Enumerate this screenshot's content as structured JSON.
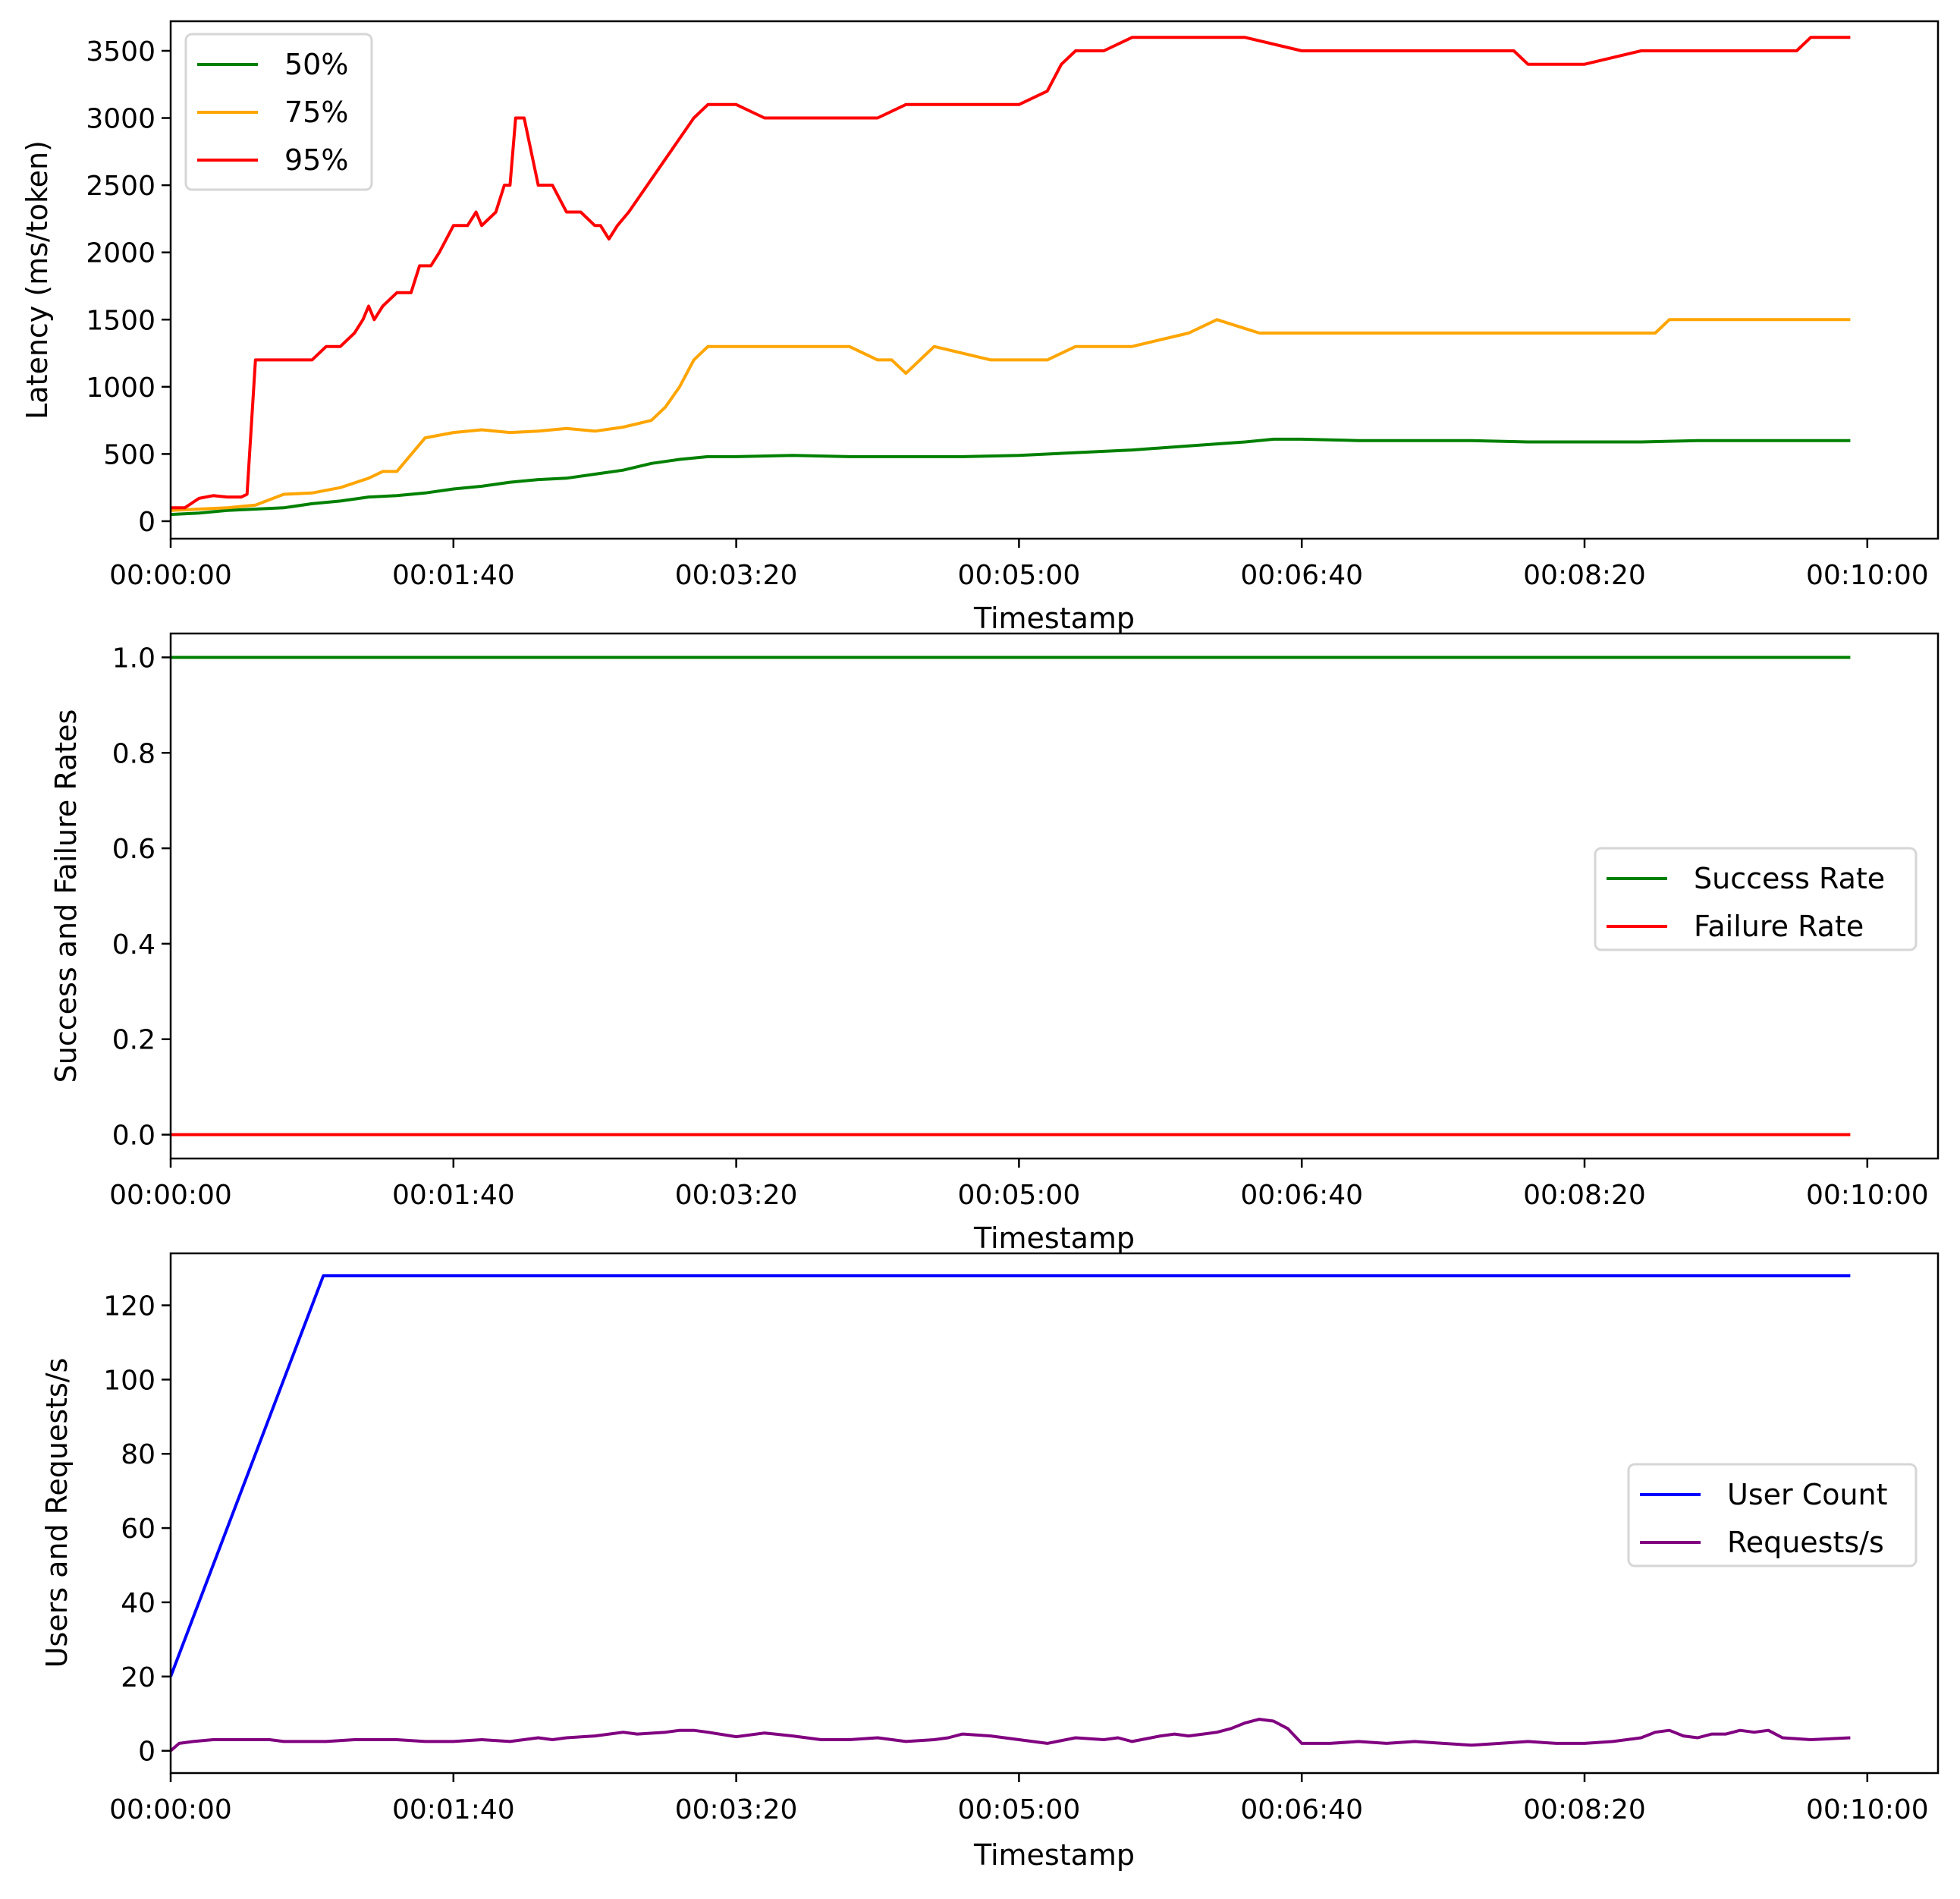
{
  "chart_data": [
    {
      "type": "line",
      "title": "",
      "xlabel": "Timestamp",
      "ylabel": "Latency (ms/token)",
      "xlim_seconds": [
        0,
        625
      ],
      "ylim": [
        -130,
        3720
      ],
      "x_ticks": [
        "00:00:00",
        "00:01:40",
        "00:03:20",
        "00:05:00",
        "00:06:40",
        "00:08:20",
        "00:10:00"
      ],
      "x_tick_seconds": [
        0,
        100,
        200,
        300,
        400,
        500,
        600
      ],
      "y_ticks": [
        0,
        500,
        1000,
        1500,
        2000,
        2500,
        3000,
        3500
      ],
      "legend_position": "upper left",
      "grid": false,
      "series": [
        {
          "name": "50%",
          "color": "#008000",
          "x": [
            0,
            10,
            20,
            30,
            40,
            50,
            60,
            70,
            80,
            90,
            100,
            110,
            120,
            130,
            140,
            150,
            160,
            170,
            180,
            190,
            200,
            220,
            240,
            260,
            280,
            300,
            320,
            340,
            360,
            380,
            390,
            400,
            420,
            440,
            460,
            480,
            500,
            520,
            540,
            560,
            580,
            594
          ],
          "y": [
            50,
            60,
            80,
            90,
            100,
            130,
            150,
            180,
            190,
            210,
            240,
            260,
            290,
            310,
            320,
            350,
            380,
            430,
            460,
            480,
            480,
            490,
            480,
            480,
            480,
            490,
            510,
            530,
            560,
            590,
            610,
            610,
            600,
            600,
            600,
            590,
            590,
            590,
            600,
            600,
            600,
            600
          ]
        },
        {
          "name": "75%",
          "color": "#FFA500",
          "x": [
            0,
            10,
            20,
            30,
            40,
            50,
            60,
            70,
            75,
            80,
            90,
            100,
            110,
            120,
            130,
            140,
            150,
            160,
            170,
            175,
            180,
            185,
            190,
            200,
            220,
            240,
            250,
            255,
            260,
            265,
            270,
            290,
            310,
            320,
            340,
            360,
            370,
            385,
            400,
            440,
            480,
            525,
            530,
            560,
            594
          ],
          "y": [
            80,
            90,
            100,
            120,
            200,
            210,
            250,
            320,
            370,
            370,
            620,
            660,
            680,
            660,
            670,
            690,
            670,
            700,
            750,
            850,
            1000,
            1200,
            1300,
            1300,
            1300,
            1300,
            1200,
            1200,
            1100,
            1200,
            1300,
            1200,
            1200,
            1300,
            1300,
            1400,
            1500,
            1400,
            1400,
            1400,
            1400,
            1400,
            1500,
            1500,
            1500
          ]
        },
        {
          "name": "95%",
          "color": "#FF0000",
          "x": [
            0,
            5,
            10,
            15,
            20,
            25,
            27,
            30,
            50,
            55,
            60,
            65,
            68,
            70,
            72,
            75,
            80,
            85,
            88,
            92,
            95,
            100,
            105,
            108,
            110,
            115,
            118,
            120,
            122,
            125,
            130,
            135,
            140,
            145,
            150,
            152,
            155,
            158,
            162,
            185,
            190,
            200,
            210,
            250,
            260,
            280,
            300,
            310,
            315,
            320,
            330,
            340,
            350,
            380,
            400,
            440,
            475,
            480,
            500,
            520,
            540,
            575,
            580,
            594
          ],
          "y": [
            100,
            100,
            170,
            190,
            180,
            180,
            200,
            1200,
            1200,
            1300,
            1300,
            1400,
            1500,
            1600,
            1500,
            1600,
            1700,
            1700,
            1900,
            1900,
            2000,
            2200,
            2200,
            2300,
            2200,
            2300,
            2500,
            2500,
            3000,
            3000,
            2500,
            2500,
            2300,
            2300,
            2200,
            2200,
            2100,
            2200,
            2300,
            3000,
            3100,
            3100,
            3000,
            3000,
            3100,
            3100,
            3100,
            3200,
            3400,
            3500,
            3500,
            3600,
            3600,
            3600,
            3500,
            3500,
            3500,
            3400,
            3400,
            3500,
            3500,
            3500,
            3600,
            3600
          ]
        }
      ]
    },
    {
      "type": "line",
      "title": "",
      "xlabel": "Timestamp",
      "ylabel": "Success and Failure Rates",
      "xlim_seconds": [
        0,
        625
      ],
      "ylim": [
        -0.05,
        1.05
      ],
      "x_ticks": [
        "00:00:00",
        "00:01:40",
        "00:03:20",
        "00:05:00",
        "00:06:40",
        "00:08:20",
        "00:10:00"
      ],
      "x_tick_seconds": [
        0,
        100,
        200,
        300,
        400,
        500,
        600
      ],
      "y_ticks": [
        "0.0",
        "0.2",
        "0.4",
        "0.6",
        "0.8",
        "1.0"
      ],
      "legend_position": "center right",
      "grid": false,
      "series": [
        {
          "name": "Success Rate",
          "color": "#008000",
          "x": [
            0,
            594
          ],
          "y": [
            1.0,
            1.0
          ]
        },
        {
          "name": "Failure Rate",
          "color": "#FF0000",
          "x": [
            0,
            594
          ],
          "y": [
            0.0,
            0.0
          ]
        }
      ]
    },
    {
      "type": "line",
      "title": "",
      "xlabel": "Timestamp",
      "ylabel": "Users and Requests/s",
      "xlim_seconds": [
        0,
        625
      ],
      "ylim": [
        -6,
        134
      ],
      "x_ticks": [
        "00:00:00",
        "00:01:40",
        "00:03:20",
        "00:05:00",
        "00:06:40",
        "00:08:20",
        "00:10:00"
      ],
      "x_tick_seconds": [
        0,
        100,
        200,
        300,
        400,
        500,
        600
      ],
      "y_ticks": [
        0,
        20,
        40,
        60,
        80,
        100,
        120
      ],
      "legend_position": "center right",
      "grid": false,
      "series": [
        {
          "name": "User Count",
          "color": "#0000FF",
          "x": [
            0,
            54,
            594
          ],
          "y": [
            20,
            128,
            128
          ]
        },
        {
          "name": "Requests/s",
          "color": "#800080",
          "x": [
            0,
            3,
            8,
            15,
            25,
            35,
            40,
            45,
            55,
            65,
            70,
            80,
            90,
            100,
            110,
            120,
            130,
            135,
            140,
            150,
            160,
            165,
            175,
            180,
            185,
            190,
            200,
            210,
            220,
            230,
            240,
            250,
            260,
            270,
            275,
            280,
            290,
            300,
            310,
            320,
            330,
            335,
            340,
            350,
            355,
            360,
            370,
            375,
            380,
            385,
            390,
            395,
            400,
            410,
            420,
            430,
            440,
            450,
            460,
            470,
            480,
            490,
            500,
            510,
            520,
            525,
            530,
            535,
            540,
            545,
            550,
            555,
            560,
            565,
            570,
            580,
            594
          ],
          "y": [
            0,
            2,
            2.5,
            3,
            3,
            3,
            2.5,
            2.5,
            2.5,
            3,
            3,
            3,
            2.5,
            2.5,
            3,
            2.5,
            3.5,
            3,
            3.5,
            4,
            5,
            4.5,
            5,
            5.5,
            5.5,
            5,
            3.8,
            4.8,
            4,
            3,
            3,
            3.5,
            2.5,
            3,
            3.5,
            4.5,
            4,
            3,
            2,
            3.5,
            3,
            3.5,
            2.5,
            4,
            4.5,
            4,
            5,
            6,
            7.5,
            8.5,
            8,
            6,
            2,
            2,
            2.5,
            2,
            2.5,
            2,
            1.5,
            2,
            2.5,
            2,
            2,
            2.5,
            3.5,
            5,
            5.5,
            4,
            3.5,
            4.5,
            4.5,
            5.5,
            5,
            5.5,
            3.5,
            3,
            3.5
          ]
        }
      ]
    }
  ]
}
